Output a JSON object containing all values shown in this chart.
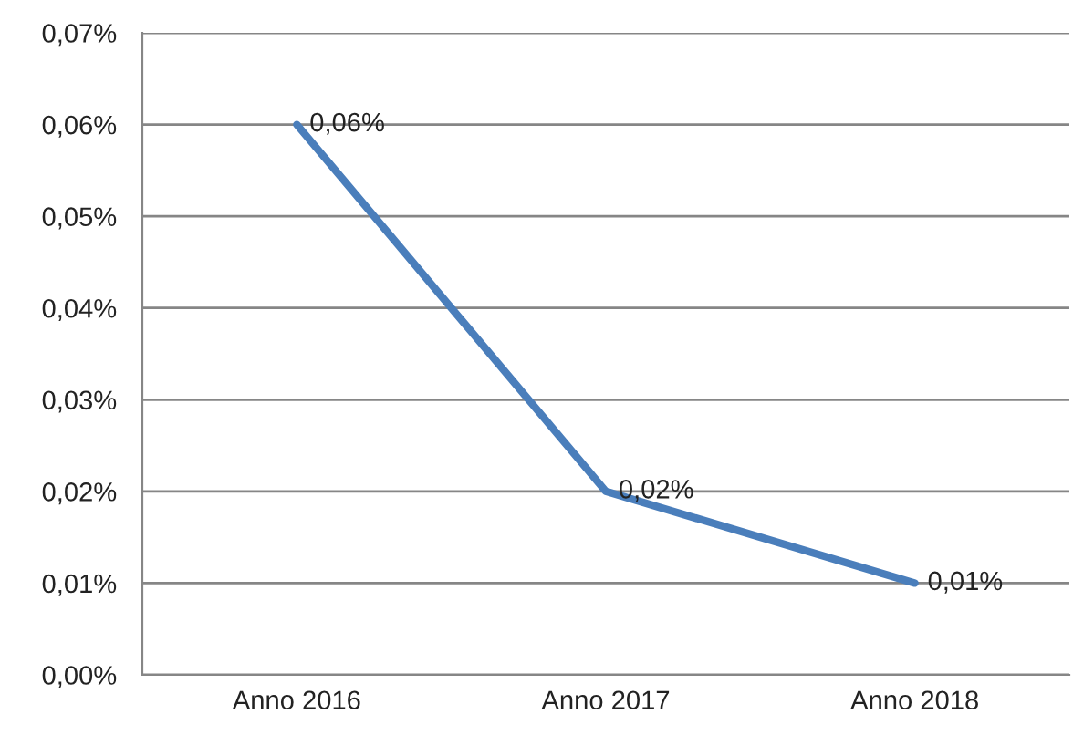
{
  "chart_data": {
    "type": "line",
    "categories": [
      "Anno 2016",
      "Anno 2017",
      "Anno 2018"
    ],
    "series": [
      {
        "color": "#4a7ebb",
        "values": [
          0.06,
          0.02,
          0.01
        ],
        "value_labels": [
          "0,06%",
          "0,02%",
          "0,01%"
        ]
      }
    ],
    "ylim": [
      0,
      0.07
    ],
    "yticks": [
      {
        "value": 0,
        "label": "0,00%"
      },
      {
        "value": 0.01,
        "label": "0,01%"
      },
      {
        "value": 0.02,
        "label": "0,02%"
      },
      {
        "value": 0.03,
        "label": "0,03%"
      },
      {
        "value": 0.04,
        "label": "0,04%"
      },
      {
        "value": 0.05,
        "label": "0,05%"
      },
      {
        "value": 0.06,
        "label": "0,06%"
      },
      {
        "value": 0.07,
        "label": "0,07%"
      }
    ],
    "grid": "y",
    "marker": "none",
    "line_style": "solid"
  }
}
